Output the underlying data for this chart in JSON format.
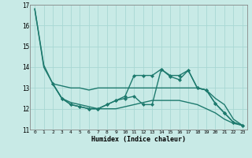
{
  "xlabel": "Humidex (Indice chaleur)",
  "background_color": "#c8eae6",
  "grid_color": "#a8d8d4",
  "line_color": "#1e7a6e",
  "xlim": [
    -0.5,
    23.5
  ],
  "ylim": [
    11,
    17
  ],
  "yticks": [
    11,
    12,
    13,
    14,
    15,
    16,
    17
  ],
  "xticks": [
    0,
    1,
    2,
    3,
    4,
    5,
    6,
    7,
    8,
    9,
    10,
    11,
    12,
    13,
    14,
    15,
    16,
    17,
    18,
    19,
    20,
    21,
    22,
    23
  ],
  "series": [
    {
      "x": [
        0,
        1,
        2,
        3,
        4,
        5,
        6,
        7,
        8,
        9,
        10,
        11,
        12,
        13,
        14,
        15,
        16,
        17,
        18,
        19,
        20,
        21,
        22,
        23
      ],
      "y": [
        16.8,
        14.1,
        13.2,
        13.1,
        13.0,
        13.0,
        12.9,
        13.0,
        13.0,
        13.0,
        13.0,
        13.0,
        13.0,
        13.0,
        13.0,
        13.0,
        13.0,
        13.0,
        13.0,
        12.9,
        12.5,
        12.2,
        11.5,
        11.2
      ],
      "marker": false,
      "linewidth": 1.0
    },
    {
      "x": [
        0,
        1,
        2,
        3,
        4,
        5,
        6,
        7,
        8,
        9,
        10,
        11,
        12,
        13,
        14,
        15,
        16,
        17,
        18,
        19,
        20,
        21,
        22,
        23
      ],
      "y": [
        16.8,
        14.0,
        13.2,
        12.5,
        12.3,
        12.2,
        12.1,
        12.0,
        12.0,
        12.0,
        12.1,
        12.2,
        12.3,
        12.4,
        12.4,
        12.4,
        12.4,
        12.3,
        12.2,
        12.0,
        11.8,
        11.5,
        11.3,
        11.2
      ],
      "marker": false,
      "linewidth": 1.0
    },
    {
      "x": [
        2,
        3,
        4,
        5,
        6,
        7,
        8,
        9,
        10,
        11,
        12,
        13,
        14,
        15,
        16,
        17,
        18,
        19,
        20,
        21,
        22,
        23
      ],
      "y": [
        13.2,
        12.5,
        12.2,
        12.1,
        12.0,
        12.0,
        12.2,
        12.4,
        12.6,
        13.6,
        13.6,
        13.6,
        13.9,
        13.6,
        13.6,
        13.85,
        13.0,
        12.9,
        12.25,
        11.8,
        11.35,
        11.2
      ],
      "marker": true,
      "linewidth": 1.0
    },
    {
      "x": [
        2,
        3,
        4,
        5,
        6,
        7,
        8,
        9,
        10,
        11,
        12,
        13,
        14,
        15,
        16,
        17,
        18,
        19,
        20,
        21,
        22,
        23
      ],
      "y": [
        13.2,
        12.5,
        12.2,
        12.1,
        12.0,
        12.0,
        12.2,
        12.4,
        12.5,
        12.6,
        12.2,
        12.2,
        13.9,
        13.55,
        13.4,
        13.85,
        13.0,
        12.9,
        12.25,
        11.8,
        11.35,
        11.2
      ],
      "marker": true,
      "linewidth": 1.0
    }
  ]
}
